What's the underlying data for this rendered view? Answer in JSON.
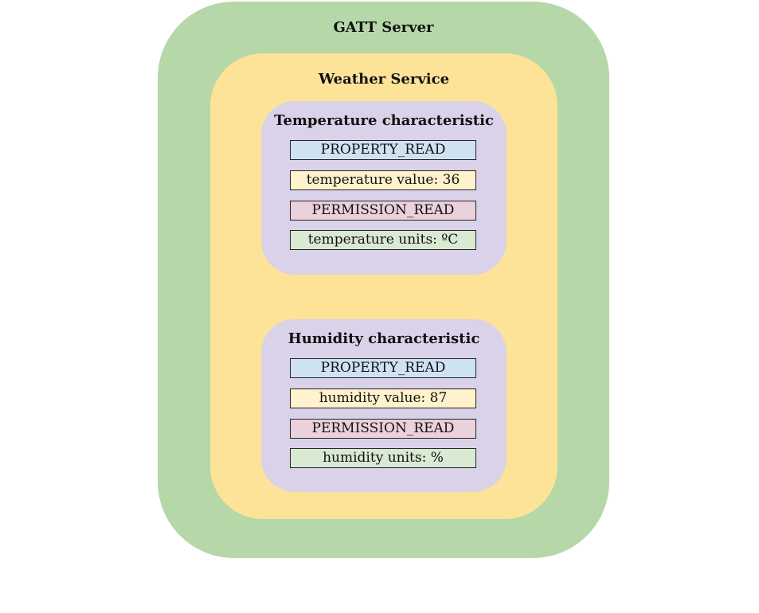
{
  "colors": {
    "server_bg": "#b6d7a8",
    "service_bg": "#fde398",
    "characteristic_bg": "#d9d2e9",
    "property_bg": "#cfe2f3",
    "value_bg": "#fff2cc",
    "permission_bg": "#ead1dc",
    "descriptor_bg": "#d9ead3"
  },
  "server": {
    "label": "GATT Server"
  },
  "service": {
    "label": "Weather Service"
  },
  "characteristics": [
    {
      "label": "Temperature characteristic",
      "property": "PROPERTY_READ",
      "value": "temperature value: 36",
      "permission": "PERMISSION_READ",
      "descriptor": "temperature units: ºC"
    },
    {
      "label": "Humidity characteristic",
      "property": "PROPERTY_READ",
      "value": "humidity value: 87",
      "permission": "PERMISSION_READ",
      "descriptor": "humidity units: %"
    }
  ]
}
